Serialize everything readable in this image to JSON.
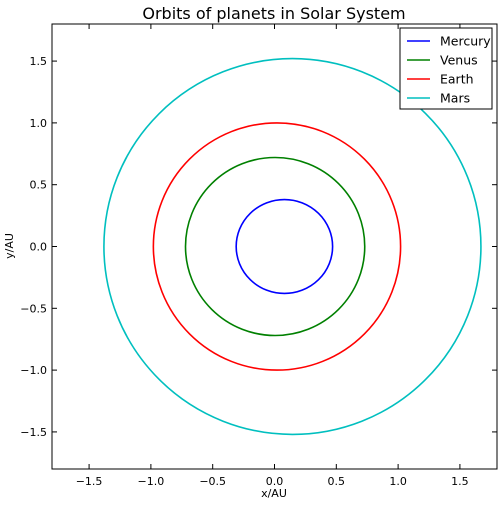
{
  "chart_data": {
    "type": "line",
    "title": "Orbits of planets in Solar System",
    "xlabel": "x/AU",
    "ylabel": "y/AU",
    "xlim": [
      -1.8,
      1.8
    ],
    "ylim": [
      -1.8,
      1.8
    ],
    "xticks": [
      -1.5,
      -1.0,
      -0.5,
      0.0,
      0.5,
      1.0,
      1.5
    ],
    "yticks": [
      -1.5,
      -1.0,
      -0.5,
      0.0,
      0.5,
      1.0,
      1.5
    ],
    "xtick_labels": [
      "−1.5",
      "−1.0",
      "−0.5",
      "0.0",
      "0.5",
      "1.0",
      "1.5"
    ],
    "ytick_labels": [
      "−1.5",
      "−1.0",
      "−0.5",
      "0.0",
      "0.5",
      "1.0",
      "1.5"
    ],
    "grid": false,
    "legend_position": "top-right",
    "series": [
      {
        "name": "Mercury",
        "color": "#0000ff",
        "center": [
          0.08,
          0.0
        ],
        "x_extent": [
          -0.31,
          0.47
        ],
        "y_extent": [
          -0.38,
          0.38
        ]
      },
      {
        "name": "Venus",
        "color": "#008000",
        "center": [
          0.0,
          0.0
        ],
        "x_extent": [
          -0.72,
          0.73
        ],
        "y_extent": [
          -0.72,
          0.72
        ]
      },
      {
        "name": "Earth",
        "color": "#ff0000",
        "center": [
          0.0,
          0.0
        ],
        "x_extent": [
          -0.98,
          1.02
        ],
        "y_extent": [
          -1.0,
          1.0
        ]
      },
      {
        "name": "Mars",
        "color": "#00bfbf",
        "center": [
          0.14,
          0.0
        ],
        "x_extent": [
          -1.38,
          1.67
        ],
        "y_extent": [
          -1.52,
          1.52
        ]
      }
    ]
  }
}
